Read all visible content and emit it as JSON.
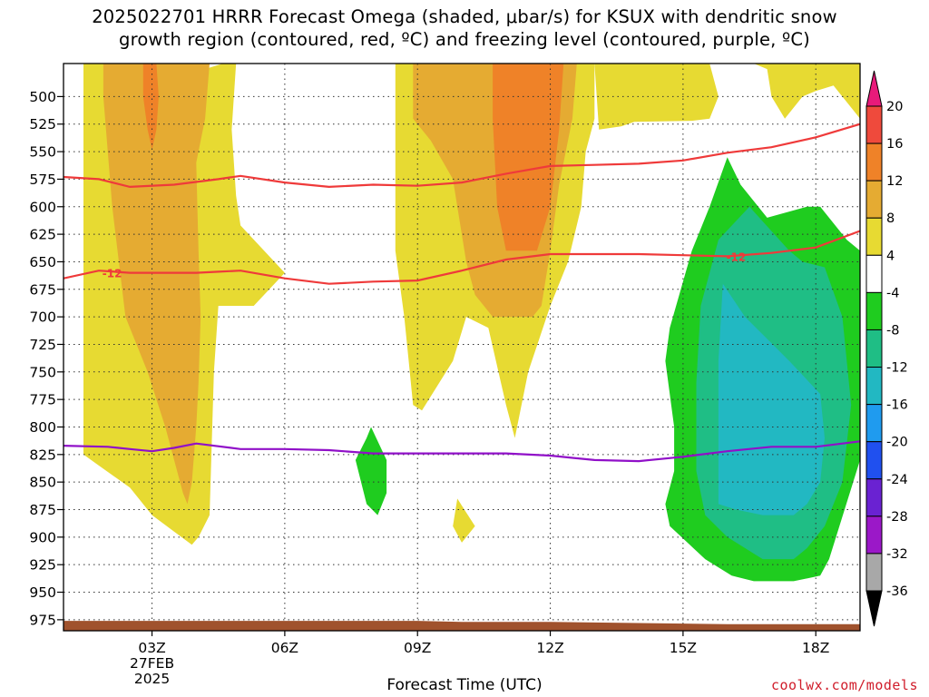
{
  "title": {
    "line1": "2025022701 HRRR Forecast Omega (shaded, μbar/s) for KSUX with dendritic snow",
    "line2": "growth region (contoured, red, ºC) and freezing level (contoured, purple, ºC)"
  },
  "credit": "coolwx.com/models",
  "chart_data": {
    "type": "heatmap",
    "title": "2025022701 HRRR Forecast Omega (shaded, μbar/s) for KSUX with dendritic snow growth region (contoured, red, ºC) and freezing level (contoured, purple, ºC)",
    "xlabel": "Forecast Time (UTC)",
    "ylabel": "",
    "xlim_hours": [
      1,
      19
    ],
    "ylim_hpa": [
      985,
      470
    ],
    "x_ticks": [
      {
        "hour": 3,
        "label": "03Z",
        "sublabels": [
          "27FEB",
          "2025"
        ]
      },
      {
        "hour": 6,
        "label": "06Z"
      },
      {
        "hour": 9,
        "label": "09Z"
      },
      {
        "hour": 12,
        "label": "12Z"
      },
      {
        "hour": 15,
        "label": "15Z"
      },
      {
        "hour": 18,
        "label": "18Z"
      }
    ],
    "y_ticks": [
      500,
      525,
      550,
      575,
      600,
      625,
      650,
      675,
      700,
      725,
      750,
      775,
      800,
      825,
      850,
      875,
      900,
      925,
      950,
      975
    ],
    "grid": true,
    "colorbar": {
      "labels": [
        "20",
        "16",
        "12",
        "8",
        "4",
        "-4",
        "-8",
        "-12",
        "-16",
        "-20",
        "-24",
        "-28",
        "-32",
        "-36"
      ],
      "colors": [
        "#e81a7a",
        "#ef4a3c",
        "#ef8228",
        "#e5ab32",
        "#e7da32",
        "#ffffff",
        "#1fcc1f",
        "#1fbe85",
        "#22b8c2",
        "#1f9bef",
        "#2050ef",
        "#6a22d2",
        "#9b18c8",
        "#a8a8a8",
        "#000000"
      ]
    },
    "shaded_regions": [
      {
        "name": "rise 4+",
        "level": "4",
        "color": "#e7da32",
        "points": [
          [
            1.45,
            470
          ],
          [
            2.8,
            470
          ],
          [
            3,
            490
          ],
          [
            4.6,
            470
          ],
          [
            4.9,
            470
          ],
          [
            4.8,
            530
          ],
          [
            4.9,
            590
          ],
          [
            5,
            617
          ],
          [
            6,
            660
          ],
          [
            5.3,
            690
          ],
          [
            4.5,
            690
          ],
          [
            4.4,
            750
          ],
          [
            4.3,
            880
          ],
          [
            4.05,
            900
          ],
          [
            3.9,
            907
          ],
          [
            3.5,
            895
          ],
          [
            3,
            880
          ],
          [
            2.5,
            855
          ],
          [
            1.8,
            835
          ],
          [
            1.45,
            825
          ],
          [
            1.45,
            650
          ]
        ]
      },
      {
        "name": "rise 8+",
        "level": "8",
        "color": "#e5ab32",
        "points": [
          [
            1.9,
            470
          ],
          [
            4.3,
            470
          ],
          [
            4.2,
            520
          ],
          [
            4,
            560
          ],
          [
            4.05,
            640
          ],
          [
            4.1,
            700
          ],
          [
            4.05,
            760
          ],
          [
            4,
            800
          ],
          [
            3.9,
            850
          ],
          [
            3.8,
            870
          ],
          [
            3.7,
            860
          ],
          [
            3.3,
            800
          ],
          [
            2.9,
            750
          ],
          [
            2.4,
            700
          ],
          [
            2.1,
            600
          ],
          [
            1.9,
            500
          ]
        ]
      },
      {
        "name": "rise 12+",
        "level": "12",
        "color": "#ef8228",
        "points": [
          [
            2.8,
            470
          ],
          [
            3.1,
            470
          ],
          [
            3.15,
            500
          ],
          [
            3.1,
            530
          ],
          [
            3,
            548
          ],
          [
            2.9,
            530
          ],
          [
            2.8,
            500
          ]
        ]
      },
      {
        "name": "rise 4+ b",
        "level": "4",
        "color": "#e7da32",
        "points": [
          [
            8.5,
            470
          ],
          [
            13,
            470
          ],
          [
            13,
            520
          ],
          [
            12.8,
            550
          ],
          [
            12.7,
            600
          ],
          [
            12.4,
            650
          ],
          [
            12,
            690
          ],
          [
            11.5,
            750
          ],
          [
            11.2,
            810
          ],
          [
            11,
            780
          ],
          [
            10.6,
            710
          ],
          [
            10.1,
            700
          ],
          [
            9.8,
            740
          ],
          [
            9.1,
            785
          ],
          [
            8.9,
            780
          ],
          [
            8.8,
            740
          ],
          [
            8.7,
            700
          ],
          [
            8.5,
            640
          ],
          [
            8.5,
            560
          ]
        ]
      },
      {
        "name": "rise 4+ c",
        "level": "4",
        "color": "#e7da32",
        "points": [
          [
            13,
            470
          ],
          [
            15.2,
            470
          ],
          [
            15.6,
            470
          ],
          [
            15.8,
            500
          ],
          [
            15.6,
            520
          ],
          [
            15.2,
            522
          ],
          [
            13.9,
            523
          ],
          [
            13.6,
            527
          ],
          [
            13.1,
            530
          ]
        ]
      },
      {
        "name": "rise 4+ d",
        "level": "4",
        "color": "#e7da32",
        "points": [
          [
            16.6,
            470
          ],
          [
            19,
            470
          ],
          [
            19,
            520
          ],
          [
            18.8,
            510
          ],
          [
            18.4,
            490
          ],
          [
            18,
            495
          ],
          [
            17.7,
            500
          ],
          [
            17.3,
            520
          ],
          [
            17,
            500
          ],
          [
            16.9,
            475
          ]
        ]
      },
      {
        "name": "rise 4+ e",
        "level": "4",
        "color": "#e7da32",
        "points": [
          [
            9.9,
            865
          ],
          [
            10.3,
            890
          ],
          [
            10,
            905
          ],
          [
            9.8,
            890
          ]
        ]
      },
      {
        "name": "rise 8+ b",
        "level": "8",
        "color": "#e5ab32",
        "points": [
          [
            8.9,
            470
          ],
          [
            12.6,
            470
          ],
          [
            12.5,
            520
          ],
          [
            12.2,
            580
          ],
          [
            12,
            640
          ],
          [
            11.8,
            690
          ],
          [
            11.6,
            700
          ],
          [
            11.3,
            700
          ],
          [
            10.7,
            700
          ],
          [
            10.3,
            680
          ],
          [
            10.1,
            650
          ],
          [
            9.8,
            575
          ],
          [
            9.3,
            540
          ],
          [
            8.9,
            520
          ]
        ]
      },
      {
        "name": "rise 12+ b",
        "level": "12",
        "color": "#ef8228",
        "points": [
          [
            10.7,
            470
          ],
          [
            12.3,
            470
          ],
          [
            12.2,
            530
          ],
          [
            12,
            600
          ],
          [
            11.7,
            640
          ],
          [
            11.4,
            640
          ],
          [
            11,
            640
          ],
          [
            10.8,
            600
          ],
          [
            10.7,
            520
          ]
        ]
      },
      {
        "name": "sink 4+",
        "level": "-4",
        "color": "#1fcc1f",
        "points": [
          [
            16,
            555
          ],
          [
            16.3,
            580
          ],
          [
            16.9,
            610
          ],
          [
            17.8,
            600
          ],
          [
            18.1,
            600
          ],
          [
            18.7,
            630
          ],
          [
            19,
            640
          ],
          [
            19,
            830
          ],
          [
            18.3,
            920
          ],
          [
            18.1,
            935
          ],
          [
            17.5,
            940
          ],
          [
            16.6,
            940
          ],
          [
            16.1,
            935
          ],
          [
            15.5,
            920
          ],
          [
            14.7,
            890
          ],
          [
            14.6,
            870
          ],
          [
            14.8,
            840
          ],
          [
            14.8,
            800
          ],
          [
            14.6,
            740
          ],
          [
            14.7,
            710
          ],
          [
            15.2,
            640
          ],
          [
            15.6,
            600
          ]
        ]
      },
      {
        "name": "sink 4+ b",
        "level": "-4",
        "color": "#1fcc1f",
        "points": [
          [
            7.95,
            800
          ],
          [
            8.3,
            830
          ],
          [
            8.3,
            860
          ],
          [
            8.1,
            880
          ],
          [
            7.85,
            870
          ],
          [
            7.6,
            830
          ],
          [
            7.85,
            810
          ]
        ]
      },
      {
        "name": "sink 8+",
        "level": "-8",
        "color": "#1fbe85",
        "points": [
          [
            16.5,
            600
          ],
          [
            17.4,
            640
          ],
          [
            17.7,
            650
          ],
          [
            18.2,
            655
          ],
          [
            18.6,
            700
          ],
          [
            18.8,
            780
          ],
          [
            18.6,
            850
          ],
          [
            18.2,
            890
          ],
          [
            17.8,
            910
          ],
          [
            17.5,
            920
          ],
          [
            16.8,
            920
          ],
          [
            16,
            900
          ],
          [
            15.5,
            880
          ],
          [
            15.3,
            840
          ],
          [
            15.3,
            760
          ],
          [
            15.4,
            690
          ],
          [
            15.8,
            630
          ]
        ]
      },
      {
        "name": "sink 12+",
        "level": "-12",
        "color": "#22b8c2",
        "points": [
          [
            15.9,
            670
          ],
          [
            16.4,
            700
          ],
          [
            17.4,
            740
          ],
          [
            18.1,
            770
          ],
          [
            18.2,
            810
          ],
          [
            18.1,
            850
          ],
          [
            17.8,
            870
          ],
          [
            17.5,
            880
          ],
          [
            16.8,
            880
          ],
          [
            16.2,
            875
          ],
          [
            15.8,
            870
          ],
          [
            15.8,
            810
          ],
          [
            15.8,
            740
          ]
        ]
      }
    ],
    "red_isotherm_c": -12,
    "red_contours": [
      {
        "label": "",
        "points": [
          [
            1,
            573
          ],
          [
            1.8,
            575
          ],
          [
            2.5,
            582
          ],
          [
            3.5,
            580
          ],
          [
            4.5,
            575
          ],
          [
            5,
            572
          ],
          [
            6,
            578
          ],
          [
            7,
            582
          ],
          [
            8,
            580
          ],
          [
            9,
            581
          ],
          [
            10,
            578
          ],
          [
            11,
            570
          ],
          [
            12,
            563
          ],
          [
            13,
            562
          ],
          [
            14,
            561
          ],
          [
            15,
            558
          ],
          [
            16,
            551
          ],
          [
            17,
            546
          ],
          [
            18,
            537
          ],
          [
            19,
            525
          ]
        ]
      },
      {
        "label": "-12",
        "points": [
          [
            1,
            665
          ],
          [
            1.8,
            658
          ],
          [
            2.5,
            660
          ],
          [
            3.5,
            660
          ],
          [
            4,
            660
          ],
          [
            4.5,
            659
          ],
          [
            5,
            658
          ],
          [
            6,
            665
          ],
          [
            7,
            670
          ],
          [
            8,
            668
          ],
          [
            9,
            667
          ],
          [
            10,
            658
          ],
          [
            11,
            648
          ],
          [
            12,
            643
          ],
          [
            13,
            643
          ],
          [
            14,
            643
          ],
          [
            15,
            644
          ],
          [
            16,
            645
          ],
          [
            17,
            642
          ],
          [
            18,
            637
          ],
          [
            19,
            622
          ]
        ]
      }
    ],
    "red_label_at": [
      [
        2.1,
        660
      ],
      [
        16.2,
        645
      ]
    ],
    "purple_isotherm_c": 0,
    "purple_contour": [
      [
        1,
        817
      ],
      [
        2,
        818
      ],
      [
        2.5,
        820
      ],
      [
        3,
        822
      ],
      [
        3.5,
        819
      ],
      [
        4,
        815
      ],
      [
        5,
        820
      ],
      [
        6,
        820
      ],
      [
        7,
        821
      ],
      [
        8,
        824
      ],
      [
        9,
        824
      ],
      [
        10,
        824
      ],
      [
        11,
        824
      ],
      [
        12,
        826
      ],
      [
        13,
        830
      ],
      [
        14,
        831
      ],
      [
        15,
        827
      ],
      [
        16,
        822
      ],
      [
        17,
        818
      ],
      [
        18,
        818
      ],
      [
        19,
        813
      ]
    ],
    "ground_pressure_hpa": [
      [
        1,
        976
      ],
      [
        5,
        976
      ],
      [
        9,
        976
      ],
      [
        10,
        977
      ],
      [
        12,
        977
      ],
      [
        14,
        978
      ],
      [
        16,
        979
      ],
      [
        19,
        979
      ]
    ]
  }
}
